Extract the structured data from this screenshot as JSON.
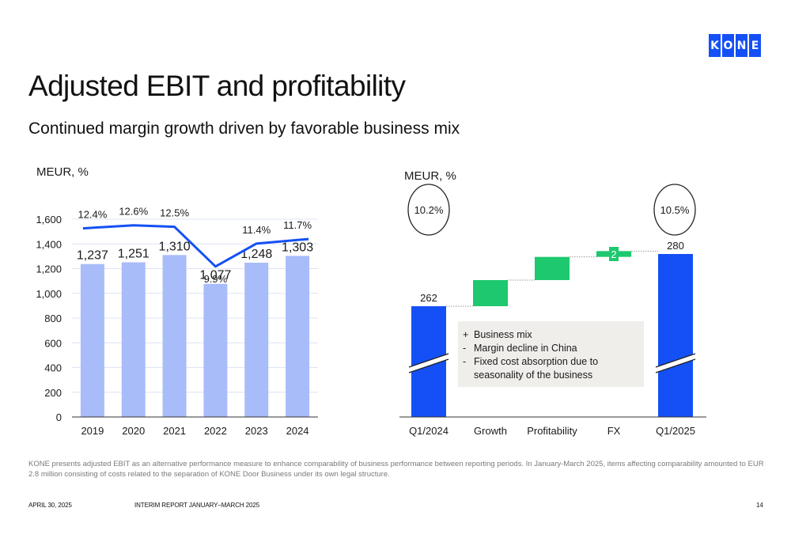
{
  "brand": {
    "letters": [
      "K",
      "O",
      "N",
      "E"
    ],
    "color": "#1450f5"
  },
  "header": {
    "title": "Adjusted EBIT and profitability",
    "subtitle": "Continued margin growth driven by favorable business mix"
  },
  "chart_data": [
    {
      "type": "bar",
      "unit_label": "MEUR, %",
      "categories": [
        "2019",
        "2020",
        "2021",
        "2022",
        "2023",
        "2024"
      ],
      "series": [
        {
          "values": [
            1237,
            1251,
            1310,
            1077,
            1248,
            1303
          ],
          "labels": [
            "1,237",
            "1,251",
            "1,310",
            "1,077",
            "1,248",
            "1,303"
          ],
          "color": "#a8bcfa",
          "kind": "bar"
        },
        {
          "values": [
            12.4,
            12.6,
            12.5,
            9.9,
            11.4,
            11.7
          ],
          "labels": [
            "12.4%",
            "12.6%",
            "12.5%",
            "9.9%",
            "11.4%",
            "11.7%"
          ],
          "color": "#1450f5",
          "kind": "line"
        }
      ],
      "yticks": [
        "0",
        "200",
        "400",
        "600",
        "800",
        "1,000",
        "1,200",
        "1,400",
        "1,600"
      ],
      "ylim": [
        0,
        1600
      ],
      "grid": true
    },
    {
      "type": "bar",
      "subtype": "waterfall",
      "unit_label": "MEUR, %",
      "categories": [
        "Q1/2024",
        "Growth",
        "Profitability",
        "FX",
        "Q1/2025"
      ],
      "start": {
        "value": 262,
        "label": "262",
        "margin": "10.2%"
      },
      "steps": [
        {
          "category": "Growth",
          "value": 9,
          "color": "#1ec86e"
        },
        {
          "category": "Profitability",
          "value": 8,
          "color": "#1ec86e"
        },
        {
          "category": "FX",
          "value": 2,
          "label": "2",
          "color": "#1ec86e"
        }
      ],
      "end": {
        "value": 280,
        "label": "280",
        "margin": "10.5%"
      },
      "total_color": "#1450f5",
      "axis_break": true,
      "note": [
        {
          "bullet": "+",
          "text": "Business mix"
        },
        {
          "bullet": "-",
          "text": "Margin decline in China"
        },
        {
          "bullet": "-",
          "text": "Fixed cost absorption due to"
        },
        {
          "bullet": "",
          "text": "seasonality of the business"
        }
      ]
    }
  ],
  "footnote": "KONE presents adjusted EBIT as an alternative performance measure to enhance comparability of business performance between reporting periods. In January-March 2025, items affecting comparability amounted to EUR 2.8 million consisting of costs related to the separation of KONE Door Business under its own legal structure.",
  "footer": {
    "date": "APRIL 30, 2025",
    "report": "INTERIM REPORT JANUARY–MARCH 2025",
    "page": "14"
  }
}
